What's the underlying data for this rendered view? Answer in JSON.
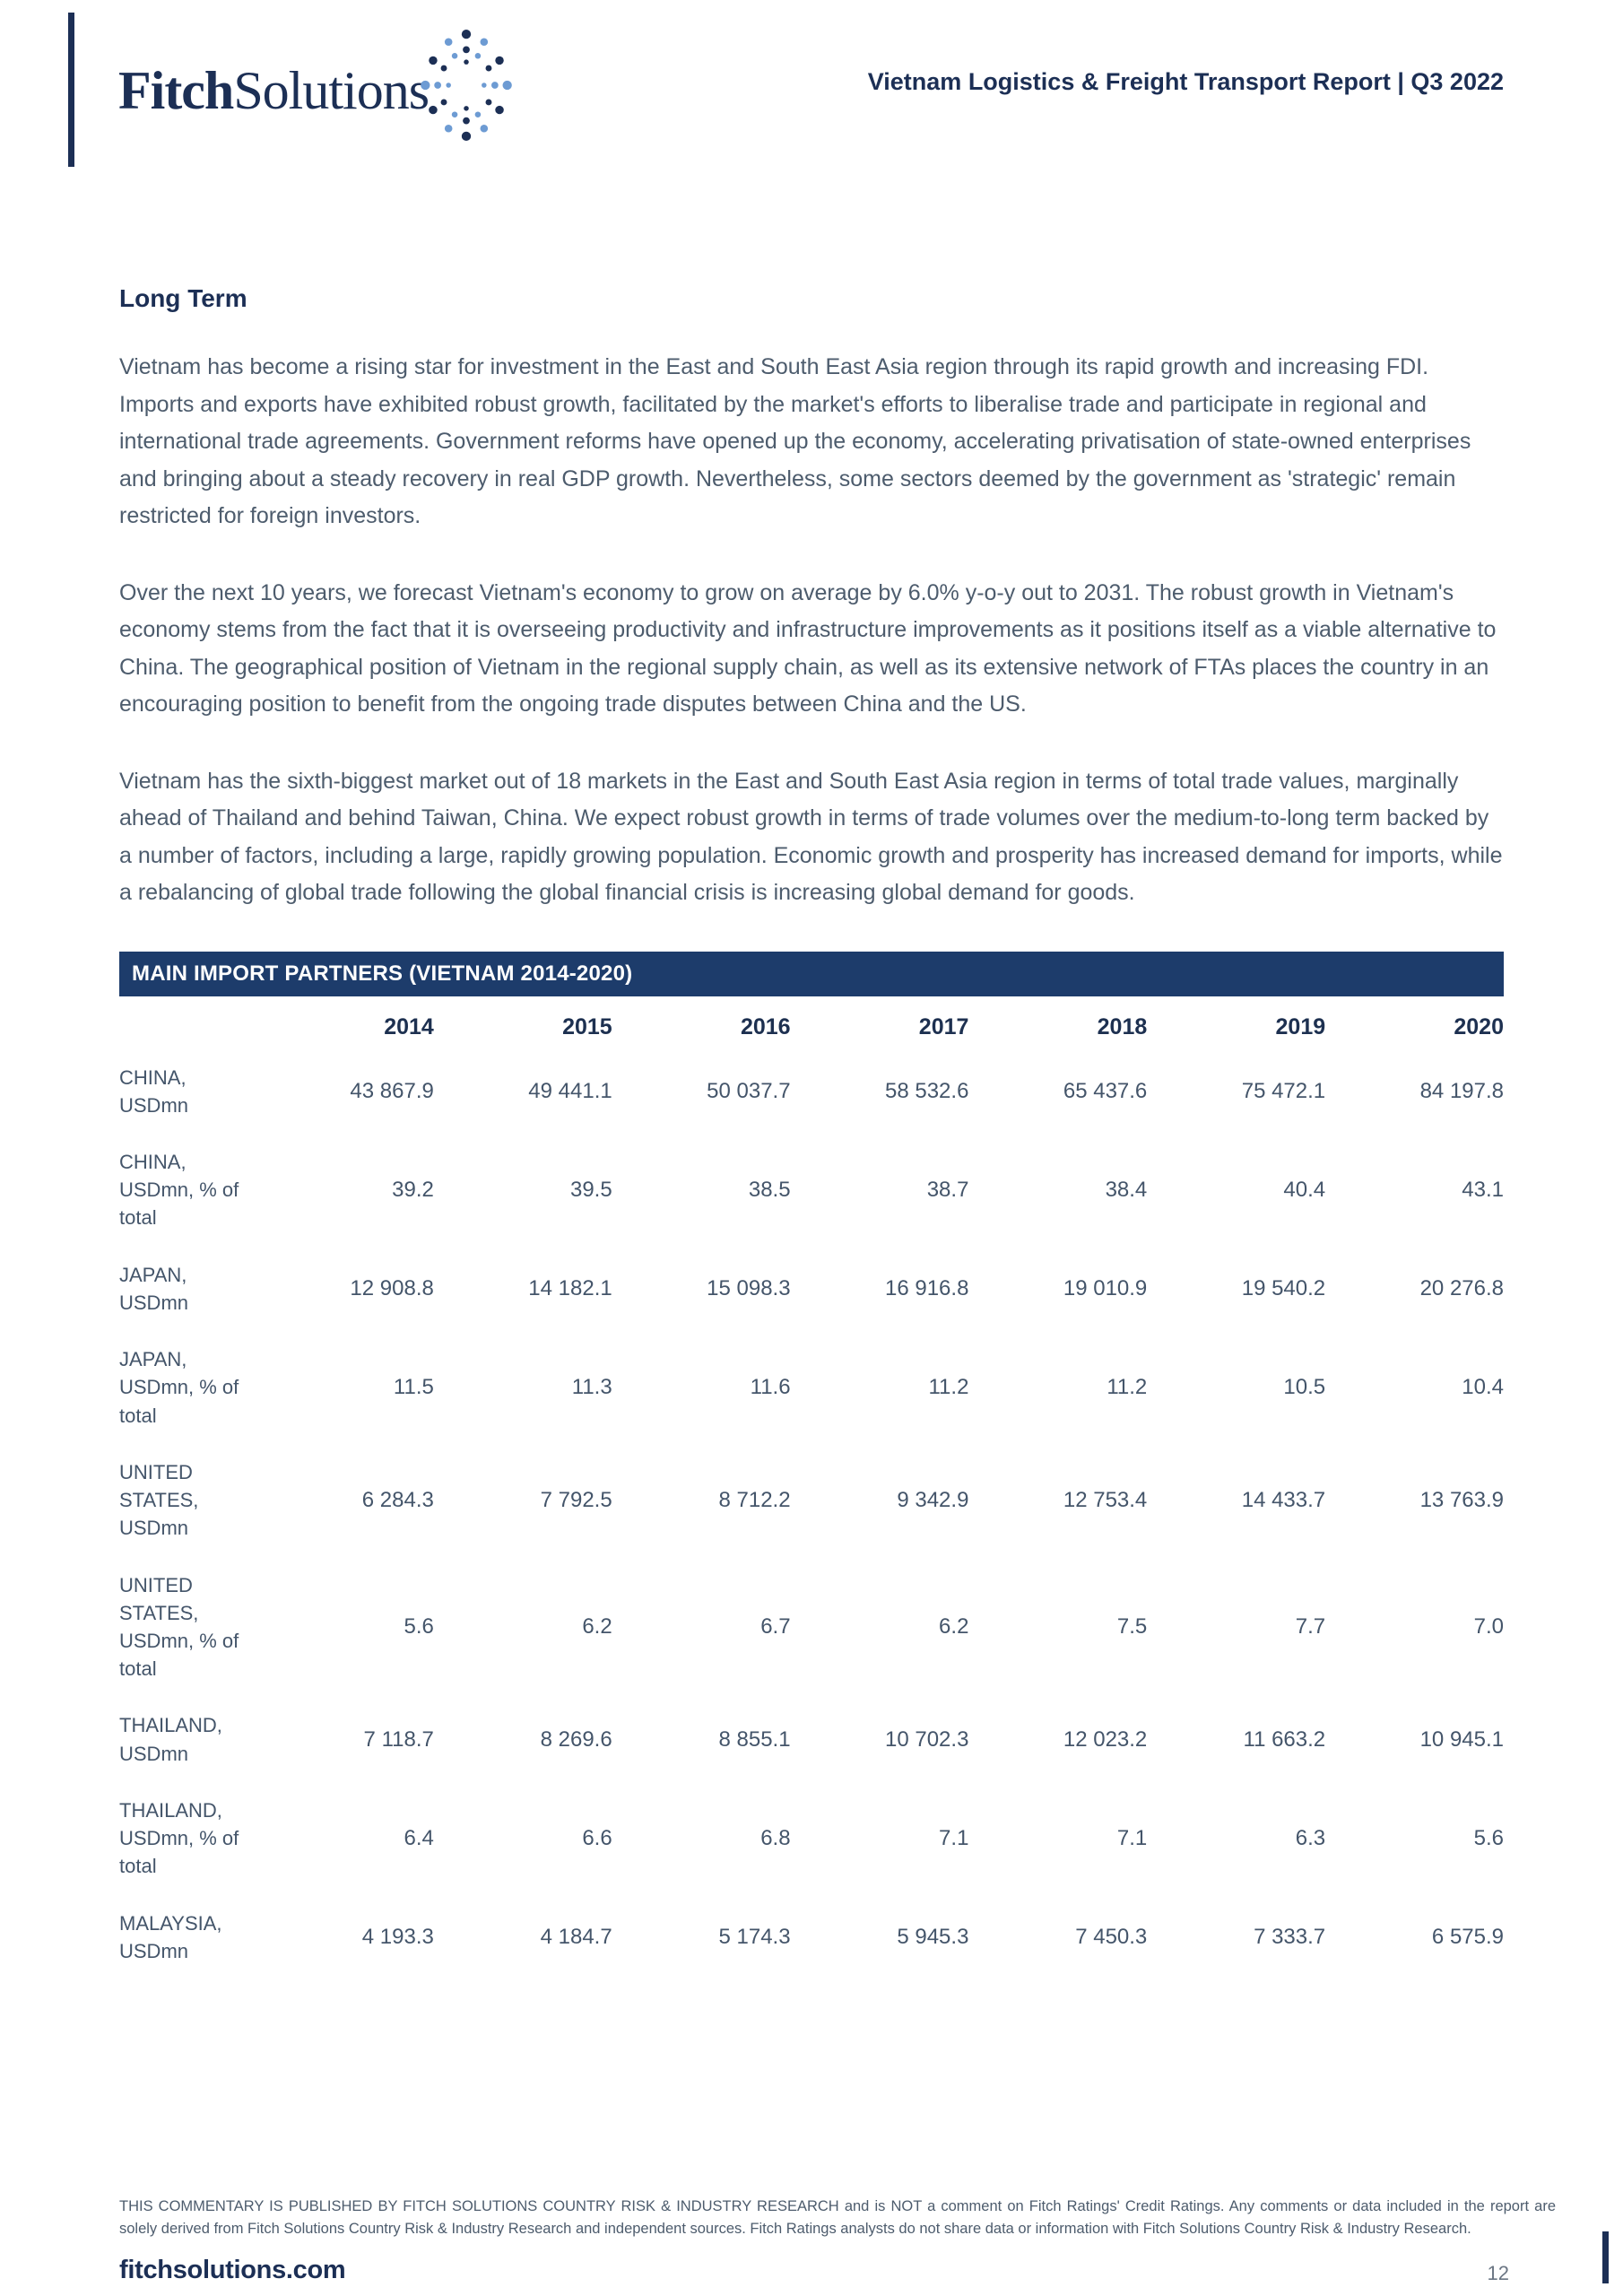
{
  "colors": {
    "brand_navy": "#1c2f55",
    "table_header_bg": "#1d3c6b",
    "dot_blue": "#6d9bd3",
    "body_text": "#4d5c6d"
  },
  "header": {
    "logo": {
      "fitch": "Fitch",
      "solutions": "Solutions"
    },
    "report_title": "Vietnam Logistics & Freight Transport Report | Q3 2022"
  },
  "main": {
    "section_heading": "Long Term",
    "paragraphs": [
      "Vietnam has become a rising star for investment in the East and South East Asia region through its rapid growth and increasing FDI. Imports and exports have exhibited robust growth, facilitated by the market's efforts to liberalise trade and participate in regional and international trade agreements. Government reforms have opened up the economy, accelerating privatisation of state-owned enterprises and bringing about a steady recovery in real GDP growth. Nevertheless, some sectors deemed by the government as 'strategic' remain restricted for foreign investors.",
      "Over the next 10 years, we forecast Vietnam's economy to grow on average by 6.0% y-o-y out to 2031. The robust growth in Vietnam's economy stems from the fact that it is overseeing productivity and infrastructure improvements as it positions itself as a viable alternative to China. The geographical position of Vietnam in the regional supply chain, as well as its extensive network of FTAs places the country in an encouraging position to benefit from the ongoing trade disputes between China and the US.",
      "Vietnam has the sixth-biggest market out of 18 markets in the East and South East Asia region in terms of total trade values, marginally ahead of Thailand and behind Taiwan, China. We expect robust growth in terms of trade volumes over the medium-to-long term backed by a number of factors, including a large, rapidly growing population. Economic growth and prosperity has increased demand for imports, while a rebalancing of global trade following the global financial crisis is increasing global demand for goods."
    ]
  },
  "table": {
    "title": "MAIN IMPORT PARTNERS (VIETNAM 2014-2020)",
    "years": [
      "2014",
      "2015",
      "2016",
      "2017",
      "2018",
      "2019",
      "2020"
    ],
    "rows": [
      {
        "label": "CHINA, USDmn",
        "values": [
          "43 867.9",
          "49 441.1",
          "50 037.7",
          "58 532.6",
          "65 437.6",
          "75 472.1",
          "84 197.8"
        ]
      },
      {
        "label": "CHINA, USDmn, % of total",
        "values": [
          "39.2",
          "39.5",
          "38.5",
          "38.7",
          "38.4",
          "40.4",
          "43.1"
        ]
      },
      {
        "label": "JAPAN, USDmn",
        "values": [
          "12 908.8",
          "14 182.1",
          "15 098.3",
          "16 916.8",
          "19 010.9",
          "19 540.2",
          "20 276.8"
        ]
      },
      {
        "label": "JAPAN, USDmn, % of total",
        "values": [
          "11.5",
          "11.3",
          "11.6",
          "11.2",
          "11.2",
          "10.5",
          "10.4"
        ]
      },
      {
        "label": "UNITED STATES, USDmn",
        "values": [
          "6 284.3",
          "7 792.5",
          "8 712.2",
          "9 342.9",
          "12 753.4",
          "14 433.7",
          "13 763.9"
        ]
      },
      {
        "label": "UNITED STATES, USDmn, % of total",
        "values": [
          "5.6",
          "6.2",
          "6.7",
          "6.2",
          "7.5",
          "7.7",
          "7.0"
        ]
      },
      {
        "label": "THAILAND, USDmn",
        "values": [
          "7 118.7",
          "8 269.6",
          "8 855.1",
          "10 702.3",
          "12 023.2",
          "11 663.2",
          "10 945.1"
        ]
      },
      {
        "label": "THAILAND, USDmn, % of total",
        "values": [
          "6.4",
          "6.6",
          "6.8",
          "7.1",
          "7.1",
          "6.3",
          "5.6"
        ]
      },
      {
        "label": "MALAYSIA, USDmn",
        "values": [
          "4 193.3",
          "4 184.7",
          "5 174.3",
          "5 945.3",
          "7 450.3",
          "7 333.7",
          "6 575.9"
        ]
      }
    ]
  },
  "footer": {
    "disclaimer": "THIS COMMENTARY IS PUBLISHED BY FITCH SOLUTIONS COUNTRY RISK & INDUSTRY RESEARCH and is NOT a comment on Fitch Ratings' Credit Ratings. Any comments or data included in the report are solely derived from Fitch Solutions Country Risk & Industry Research and independent sources. Fitch Ratings analysts do not share data or information with Fitch Solutions Country Risk & Industry Research.",
    "site": "fitchsolutions.com",
    "page_number": "12"
  }
}
